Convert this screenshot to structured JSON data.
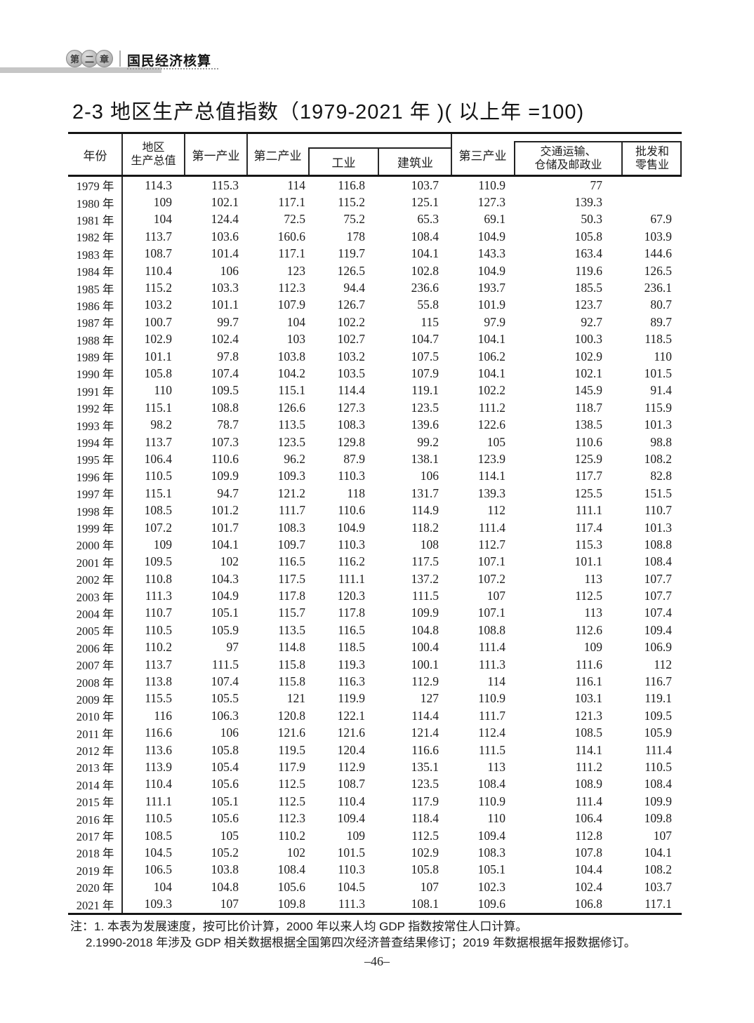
{
  "chapter": {
    "badge_chars": [
      "第",
      "二",
      "章"
    ],
    "label": "国民经济核算"
  },
  "title": "2-3 地区生产总值指数（1979-2021 年 )( 以上年 =100)",
  "table": {
    "header": {
      "year": "年份",
      "gdp_lines": [
        "地区",
        "生产总值"
      ],
      "primary": "第一产业",
      "secondary": "第二产业",
      "industry": "工业",
      "construction": "建筑业",
      "tertiary": "第三产业",
      "transport_lines": [
        "交通运输、",
        "仓储及邮政业"
      ],
      "wholesale_lines": [
        "批发和",
        "零售业"
      ]
    },
    "rows": [
      {
        "year": "1979 年",
        "values": [
          "114.3",
          "115.3",
          "114",
          "116.8",
          "103.7",
          "110.9",
          "77",
          ""
        ]
      },
      {
        "year": "1980 年",
        "values": [
          "109",
          "102.1",
          "117.1",
          "115.2",
          "125.1",
          "127.3",
          "139.3",
          ""
        ]
      },
      {
        "year": "1981 年",
        "values": [
          "104",
          "124.4",
          "72.5",
          "75.2",
          "65.3",
          "69.1",
          "50.3",
          "67.9"
        ]
      },
      {
        "year": "1982 年",
        "values": [
          "113.7",
          "103.6",
          "160.6",
          "178",
          "108.4",
          "104.9",
          "105.8",
          "103.9"
        ]
      },
      {
        "year": "1983 年",
        "values": [
          "108.7",
          "101.4",
          "117.1",
          "119.7",
          "104.1",
          "143.3",
          "163.4",
          "144.6"
        ]
      },
      {
        "year": "1984 年",
        "values": [
          "110.4",
          "106",
          "123",
          "126.5",
          "102.8",
          "104.9",
          "119.6",
          "126.5"
        ]
      },
      {
        "year": "1985 年",
        "values": [
          "115.2",
          "103.3",
          "112.3",
          "94.4",
          "236.6",
          "193.7",
          "185.5",
          "236.1"
        ]
      },
      {
        "year": "1986 年",
        "values": [
          "103.2",
          "101.1",
          "107.9",
          "126.7",
          "55.8",
          "101.9",
          "123.7",
          "80.7"
        ]
      },
      {
        "year": "1987 年",
        "values": [
          "100.7",
          "99.7",
          "104",
          "102.2",
          "115",
          "97.9",
          "92.7",
          "89.7"
        ]
      },
      {
        "year": "1988 年",
        "values": [
          "102.9",
          "102.4",
          "103",
          "102.7",
          "104.7",
          "104.1",
          "100.3",
          "118.5"
        ]
      },
      {
        "year": "1989 年",
        "values": [
          "101.1",
          "97.8",
          "103.8",
          "103.2",
          "107.5",
          "106.2",
          "102.9",
          "110"
        ]
      },
      {
        "year": "1990 年",
        "values": [
          "105.8",
          "107.4",
          "104.2",
          "103.5",
          "107.9",
          "104.1",
          "102.1",
          "101.5"
        ]
      },
      {
        "year": "1991 年",
        "values": [
          "110",
          "109.5",
          "115.1",
          "114.4",
          "119.1",
          "102.2",
          "145.9",
          "91.4"
        ]
      },
      {
        "year": "1992 年",
        "values": [
          "115.1",
          "108.8",
          "126.6",
          "127.3",
          "123.5",
          "111.2",
          "118.7",
          "115.9"
        ]
      },
      {
        "year": "1993 年",
        "values": [
          "98.2",
          "78.7",
          "113.5",
          "108.3",
          "139.6",
          "122.6",
          "138.5",
          "101.3"
        ]
      },
      {
        "year": "1994 年",
        "values": [
          "113.7",
          "107.3",
          "123.5",
          "129.8",
          "99.2",
          "105",
          "110.6",
          "98.8"
        ]
      },
      {
        "year": "1995 年",
        "values": [
          "106.4",
          "110.6",
          "96.2",
          "87.9",
          "138.1",
          "123.9",
          "125.9",
          "108.2"
        ]
      },
      {
        "year": "1996 年",
        "values": [
          "110.5",
          "109.9",
          "109.3",
          "110.3",
          "106",
          "114.1",
          "117.7",
          "82.8"
        ]
      },
      {
        "year": "1997 年",
        "values": [
          "115.1",
          "94.7",
          "121.2",
          "118",
          "131.7",
          "139.3",
          "125.5",
          "151.5"
        ]
      },
      {
        "year": "1998 年",
        "values": [
          "108.5",
          "101.2",
          "111.7",
          "110.6",
          "114.9",
          "112",
          "111.1",
          "110.7"
        ]
      },
      {
        "year": "1999 年",
        "values": [
          "107.2",
          "101.7",
          "108.3",
          "104.9",
          "118.2",
          "111.4",
          "117.4",
          "101.3"
        ]
      },
      {
        "year": "2000 年",
        "values": [
          "109",
          "104.1",
          "109.7",
          "110.3",
          "108",
          "112.7",
          "115.3",
          "108.8"
        ]
      },
      {
        "year": "2001 年",
        "values": [
          "109.5",
          "102",
          "116.5",
          "116.2",
          "117.5",
          "107.1",
          "101.1",
          "108.4"
        ]
      },
      {
        "year": "2002 年",
        "values": [
          "110.8",
          "104.3",
          "117.5",
          "111.1",
          "137.2",
          "107.2",
          "113",
          "107.7"
        ]
      },
      {
        "year": "2003 年",
        "values": [
          "111.3",
          "104.9",
          "117.8",
          "120.3",
          "111.5",
          "107",
          "112.5",
          "107.7"
        ]
      },
      {
        "year": "2004 年",
        "values": [
          "110.7",
          "105.1",
          "115.7",
          "117.8",
          "109.9",
          "107.1",
          "113",
          "107.4"
        ]
      },
      {
        "year": "2005 年",
        "values": [
          "110.5",
          "105.9",
          "113.5",
          "116.5",
          "104.8",
          "108.8",
          "112.6",
          "109.4"
        ]
      },
      {
        "year": "2006 年",
        "values": [
          "110.2",
          "97",
          "114.8",
          "118.5",
          "100.4",
          "111.4",
          "109",
          "106.9"
        ]
      },
      {
        "year": "2007 年",
        "values": [
          "113.7",
          "111.5",
          "115.8",
          "119.3",
          "100.1",
          "111.3",
          "111.6",
          "112"
        ]
      },
      {
        "year": "2008 年",
        "values": [
          "113.8",
          "107.4",
          "115.8",
          "116.3",
          "112.9",
          "114",
          "116.1",
          "116.7"
        ]
      },
      {
        "year": "2009 年",
        "values": [
          "115.5",
          "105.5",
          "121",
          "119.9",
          "127",
          "110.9",
          "103.1",
          "119.1"
        ]
      },
      {
        "year": "2010 年",
        "values": [
          "116",
          "106.3",
          "120.8",
          "122.1",
          "114.4",
          "111.7",
          "121.3",
          "109.5"
        ]
      },
      {
        "year": "2011 年",
        "values": [
          "116.6",
          "106",
          "121.6",
          "121.6",
          "121.4",
          "112.4",
          "108.5",
          "105.9"
        ]
      },
      {
        "year": "2012 年",
        "values": [
          "113.6",
          "105.8",
          "119.5",
          "120.4",
          "116.6",
          "111.5",
          "114.1",
          "111.4"
        ]
      },
      {
        "year": "2013 年",
        "values": [
          "113.9",
          "105.4",
          "117.9",
          "112.9",
          "135.1",
          "113",
          "111.2",
          "110.5"
        ]
      },
      {
        "year": "2014 年",
        "values": [
          "110.4",
          "105.6",
          "112.5",
          "108.7",
          "123.5",
          "108.4",
          "108.9",
          "108.4"
        ]
      },
      {
        "year": "2015 年",
        "values": [
          "111.1",
          "105.1",
          "112.5",
          "110.4",
          "117.9",
          "110.9",
          "111.4",
          "109.9"
        ]
      },
      {
        "year": "2016 年",
        "values": [
          "110.5",
          "105.6",
          "112.3",
          "109.4",
          "118.4",
          "110",
          "106.4",
          "109.8"
        ]
      },
      {
        "year": "2017 年",
        "values": [
          "108.5",
          "105",
          "110.2",
          "109",
          "112.5",
          "109.4",
          "112.8",
          "107"
        ]
      },
      {
        "year": "2018 年",
        "values": [
          "104.5",
          "105.2",
          "102",
          "101.5",
          "102.9",
          "108.3",
          "107.8",
          "104.1"
        ]
      },
      {
        "year": "2019 年",
        "values": [
          "106.5",
          "103.8",
          "108.4",
          "110.3",
          "105.8",
          "105.1",
          "104.4",
          "108.2"
        ]
      },
      {
        "year": "2020 年",
        "values": [
          "104",
          "104.8",
          "105.6",
          "104.5",
          "107",
          "102.3",
          "102.4",
          "103.7"
        ]
      },
      {
        "year": "2021 年",
        "values": [
          "109.3",
          "107",
          "109.8",
          "111.3",
          "108.1",
          "109.6",
          "106.8",
          "117.1"
        ]
      }
    ]
  },
  "notes": [
    "注：1. 本表为发展速度，按可比价计算，2000 年以来人均 GDP 指数按常住人口计算。",
    "2.1990-2018 年涉及 GDP 相关数据根据全国第四次经济普查结果修订；2019 年数据根据年报数据修订。"
  ],
  "page_number": "–46–"
}
